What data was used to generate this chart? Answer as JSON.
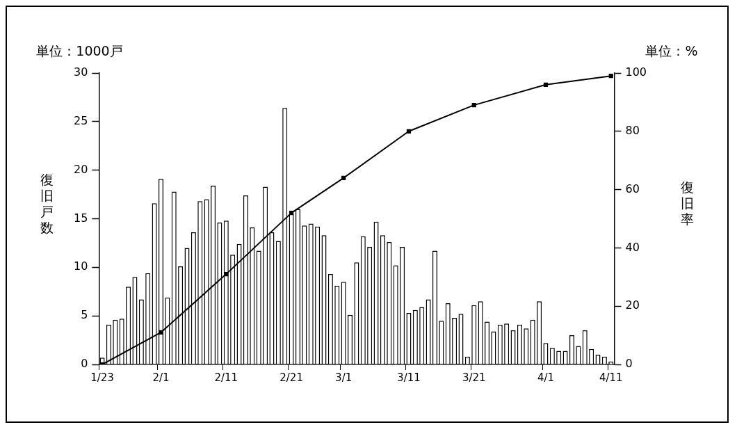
{
  "chart_data": {
    "type": "bar",
    "ylabel": "復旧戸数",
    "y2label": "復旧率",
    "annotations": [
      "単位：1000戸",
      "単位：%"
    ],
    "categories": [
      "1/23",
      null,
      null,
      null,
      null,
      null,
      null,
      null,
      null,
      "2/1",
      null,
      null,
      null,
      null,
      null,
      null,
      null,
      null,
      null,
      "2/11",
      null,
      null,
      null,
      null,
      null,
      null,
      null,
      null,
      null,
      "2/21",
      null,
      null,
      null,
      null,
      null,
      null,
      null,
      "3/1",
      null,
      null,
      null,
      null,
      null,
      null,
      null,
      null,
      null,
      "3/11",
      null,
      null,
      null,
      null,
      null,
      null,
      null,
      null,
      null,
      "3/21",
      null,
      null,
      null,
      null,
      null,
      null,
      null,
      null,
      null,
      null,
      "4/1",
      null,
      null,
      null,
      null,
      null,
      null,
      null,
      null,
      null,
      "4/11"
    ],
    "series": [
      {
        "color": "#ffffff",
        "values": [
          0.7,
          4.1,
          4.6,
          4.7,
          8.0,
          9.0,
          6.7,
          9.4,
          16.6,
          19.1,
          6.9,
          17.8,
          10.1,
          12.0,
          13.6,
          16.8,
          17.0,
          18.4,
          14.6,
          14.8,
          11.3,
          12.4,
          17.4,
          14.1,
          11.7,
          18.3,
          13.6,
          12.7,
          26.4,
          15.5,
          16.0,
          14.3,
          14.5,
          14.2,
          13.3,
          9.3,
          8.1,
          8.5,
          5.1,
          10.5,
          13.2,
          12.1,
          14.7,
          13.3,
          12.6,
          10.2,
          12.1,
          5.3,
          5.6,
          5.9,
          6.7,
          11.7,
          4.5,
          6.3,
          4.8,
          5.2,
          0.8,
          6.1,
          6.5,
          4.4,
          3.4,
          4.1,
          4.2,
          3.5,
          4.1,
          3.7,
          4.6,
          6.5,
          2.2,
          1.7,
          1.4,
          1.4,
          3.0,
          1.9,
          3.5,
          1.6,
          1.0,
          0.8,
          0.3
        ]
      },
      {
        "type": "line",
        "axis": "y2",
        "color": "#000000",
        "marker": "square",
        "values": [
          0,
          null,
          null,
          null,
          null,
          null,
          null,
          null,
          null,
          11,
          null,
          null,
          null,
          null,
          null,
          null,
          null,
          null,
          null,
          31,
          null,
          null,
          null,
          null,
          null,
          null,
          null,
          null,
          null,
          52,
          null,
          null,
          null,
          null,
          null,
          null,
          null,
          64,
          null,
          null,
          null,
          null,
          null,
          null,
          null,
          null,
          null,
          80,
          null,
          null,
          null,
          null,
          null,
          null,
          null,
          null,
          null,
          89,
          null,
          null,
          null,
          null,
          null,
          null,
          null,
          null,
          null,
          null,
          96,
          null,
          null,
          null,
          null,
          null,
          null,
          null,
          null,
          null,
          99
        ]
      }
    ],
    "ylim": [
      0,
      30
    ],
    "yticks": [
      0,
      5,
      10,
      15,
      20,
      25,
      30
    ],
    "y2lim": [
      0,
      100
    ],
    "y2ticks": [
      0,
      20,
      40,
      60,
      80,
      100
    ],
    "grid": false,
    "legend": false
  }
}
